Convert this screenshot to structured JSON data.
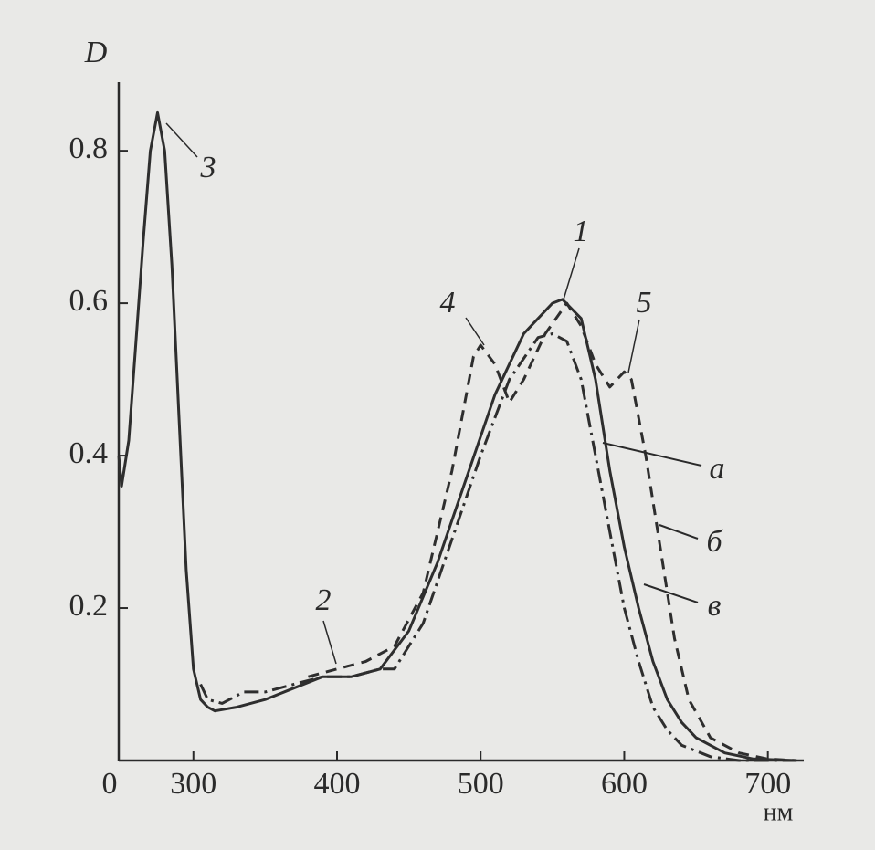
{
  "chart_data": {
    "type": "line",
    "y_label": "D",
    "x_label": "нм",
    "xlim": [
      248,
      725
    ],
    "xticks": [
      300,
      400,
      500,
      600,
      700
    ],
    "ylim": [
      0,
      0.89
    ],
    "yticks": [
      0,
      0.2,
      0.4,
      0.6,
      0.8
    ],
    "grid": false,
    "series": [
      {
        "name": "а",
        "color": "#2e2e2e",
        "dash": "none",
        "x": [
          248,
          250,
          255,
          260,
          265,
          270,
          275,
          280,
          285,
          290,
          295,
          300,
          305,
          310,
          315,
          330,
          350,
          370,
          390,
          410,
          430,
          450,
          470,
          490,
          510,
          530,
          550,
          557,
          570,
          580,
          590,
          600,
          610,
          620,
          630,
          640,
          650,
          670,
          690,
          720
        ],
        "values": [
          0.4,
          0.36,
          0.42,
          0.55,
          0.68,
          0.8,
          0.85,
          0.8,
          0.65,
          0.45,
          0.25,
          0.12,
          0.08,
          0.07,
          0.065,
          0.07,
          0.08,
          0.095,
          0.11,
          0.11,
          0.12,
          0.17,
          0.26,
          0.37,
          0.48,
          0.56,
          0.6,
          0.605,
          0.58,
          0.5,
          0.38,
          0.28,
          0.2,
          0.13,
          0.08,
          0.05,
          0.03,
          0.01,
          0.002,
          0
        ]
      },
      {
        "name": "б",
        "color": "#2e2e2e",
        "dash": "12 8",
        "x": [
          380,
          400,
          420,
          440,
          460,
          480,
          495,
          500,
          510,
          520,
          530,
          545,
          560,
          570,
          580,
          590,
          600,
          605,
          615,
          625,
          635,
          645,
          660,
          680,
          700,
          720
        ],
        "values": [
          0.11,
          0.12,
          0.13,
          0.15,
          0.22,
          0.38,
          0.53,
          0.545,
          0.52,
          0.47,
          0.5,
          0.56,
          0.6,
          0.57,
          0.52,
          0.49,
          0.51,
          0.5,
          0.4,
          0.28,
          0.16,
          0.08,
          0.03,
          0.01,
          0.002,
          0
        ]
      },
      {
        "name": "в",
        "color": "#2e2e2e",
        "dash": "16 6 3 6",
        "x": [
          305,
          310,
          320,
          335,
          350,
          370,
          390,
          410,
          430,
          440,
          460,
          480,
          500,
          520,
          540,
          550,
          560,
          570,
          580,
          590,
          600,
          610,
          620,
          630,
          640,
          660,
          680,
          720
        ],
        "values": [
          0.1,
          0.08,
          0.075,
          0.09,
          0.09,
          0.1,
          0.11,
          0.11,
          0.12,
          0.12,
          0.18,
          0.29,
          0.4,
          0.5,
          0.555,
          0.56,
          0.55,
          0.5,
          0.4,
          0.3,
          0.2,
          0.13,
          0.07,
          0.04,
          0.02,
          0.005,
          0,
          0
        ]
      }
    ],
    "annotations": [
      "1",
      "2",
      "3",
      "4",
      "5"
    ]
  }
}
